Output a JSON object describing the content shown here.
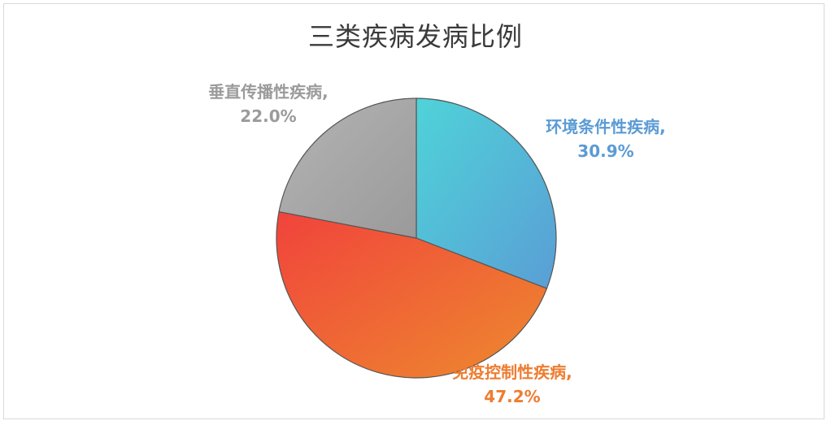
{
  "chart_data": {
    "type": "pie",
    "title": "三类疾病发病比例",
    "slices": [
      {
        "label": "环境条件性疾病",
        "value": 30.9,
        "value_label": "30.9%",
        "color_start": "#4fd3d8",
        "color_end": "#5a9ed6",
        "label_color": "#5b9bd5"
      },
      {
        "label": "免疫控制性疾病",
        "value": 47.2,
        "value_label": "47.2%",
        "color_start": "#f0433c",
        "color_end": "#ee8a2e",
        "label_color": "#ed7d31"
      },
      {
        "label": "垂直传播性疾病",
        "value": 22.0,
        "value_label": "22.0%",
        "color_start": "#b4b4b4",
        "color_end": "#9a9a9a",
        "label_color": "#9b9b9b"
      }
    ],
    "legend": "none"
  }
}
